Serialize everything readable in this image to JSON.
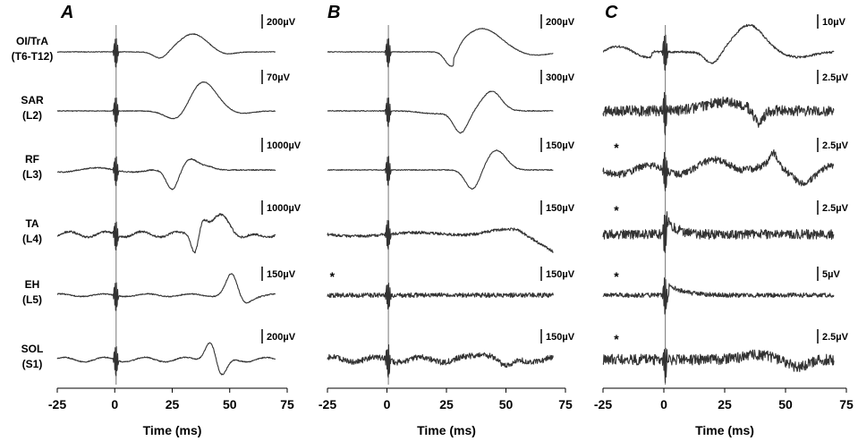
{
  "chart_data": {
    "type": "line",
    "panels": [
      {
        "letter": "A",
        "scale_bars": [
          "200µV",
          "70µV",
          "1000µV",
          "1000µV",
          "150µV",
          "200µV"
        ],
        "asterisks": [
          false,
          false,
          false,
          false,
          false,
          false
        ]
      },
      {
        "letter": "B",
        "scale_bars": [
          "200µV",
          "300µV",
          "150µV",
          "150µV",
          "150µV",
          "150µV"
        ],
        "asterisks": [
          false,
          false,
          false,
          false,
          true,
          false
        ]
      },
      {
        "letter": "C",
        "scale_bars": [
          "10µV",
          "2.5µV",
          "2.5µV",
          "2.5µV",
          "5µV",
          "2.5µV"
        ],
        "asterisks": [
          false,
          false,
          true,
          true,
          true,
          true
        ]
      }
    ],
    "rows": [
      {
        "muscle": "OI/TrA",
        "segment": "(T6-T12)"
      },
      {
        "muscle": "SAR",
        "segment": "(L2)"
      },
      {
        "muscle": "RF",
        "segment": "(L3)"
      },
      {
        "muscle": "TA",
        "segment": "(L4)"
      },
      {
        "muscle": "EH",
        "segment": "(L5)"
      },
      {
        "muscle": "SOL",
        "segment": "(S1)"
      }
    ],
    "x_ticks": [
      -25,
      0,
      25,
      50,
      75
    ],
    "xlim": [
      -25,
      75
    ],
    "xlabel": "Time  (ms)",
    "asterisk_text": "*",
    "series_color": "#333333"
  }
}
